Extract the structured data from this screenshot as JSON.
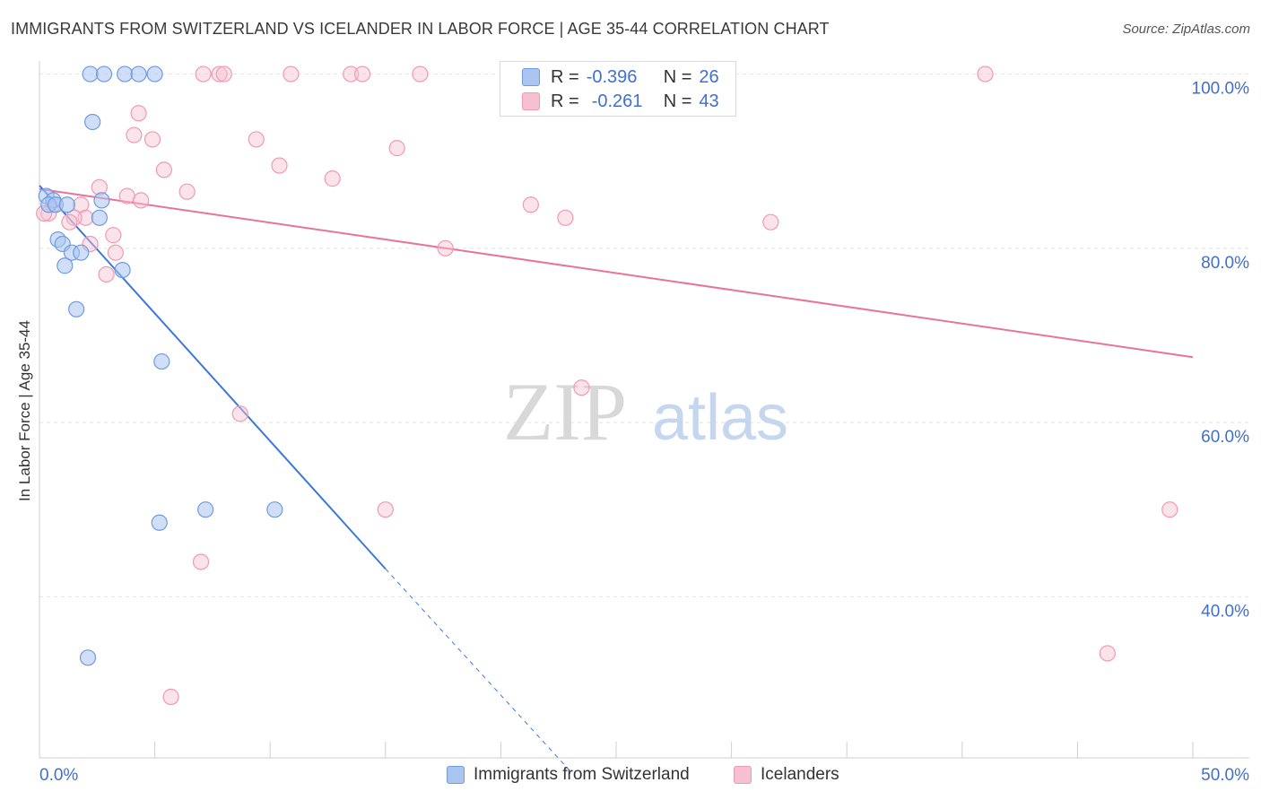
{
  "title": "IMMIGRANTS FROM SWITZERLAND VS ICELANDER IN LABOR FORCE | AGE 35-44 CORRELATION CHART",
  "source": "Source: ZipAtlas.com",
  "watermark": {
    "zip": "ZIP",
    "atlas": "atlas"
  },
  "legend": {
    "r_label": "R =",
    "n_label": "N =",
    "series1": {
      "r": "-0.396",
      "n": "26"
    },
    "series2": {
      "r": "-0.261",
      "n": "43"
    }
  },
  "bottom_legend": {
    "series1": "Immigrants from Switzerland",
    "series2": "Icelanders"
  },
  "colors": {
    "blue_fill": "#a9c5f0",
    "blue_stroke": "#6f9be0",
    "blue_line": "#3b78d8",
    "pink_fill": "#f7c0d0",
    "pink_stroke": "#ee9ab5",
    "pink_line": "#e8739b",
    "axis_text": "#3f6fd1"
  },
  "chart_data": {
    "type": "scatter",
    "title": "IMMIGRANTS FROM SWITZERLAND VS ICELANDER IN LABOR FORCE | AGE 35-44 CORRELATION CHART",
    "xlabel": "",
    "ylabel": "In Labor Force | Age 35-44",
    "xlim": [
      0,
      50
    ],
    "ylim": [
      21.5,
      101.5
    ],
    "x_tick_labels": [
      "0.0%",
      "50.0%"
    ],
    "y_ticks": [
      40,
      60,
      80,
      100
    ],
    "y_tick_labels": [
      "40.0%",
      "60.0%",
      "80.0%",
      "100.0%"
    ],
    "series": [
      {
        "name": "Immigrants from Switzerland",
        "r": -0.396,
        "n": 26,
        "points": [
          [
            2.2,
            100
          ],
          [
            2.8,
            100
          ],
          [
            3.7,
            100
          ],
          [
            4.3,
            100
          ],
          [
            5.0,
            100
          ],
          [
            2.3,
            94.5
          ],
          [
            0.3,
            86
          ],
          [
            0.6,
            85.5
          ],
          [
            0.4,
            85
          ],
          [
            0.7,
            85
          ],
          [
            1.2,
            85
          ],
          [
            2.7,
            85.5
          ],
          [
            2.6,
            83.5
          ],
          [
            0.8,
            81
          ],
          [
            1.0,
            80.5
          ],
          [
            1.4,
            79.5
          ],
          [
            1.8,
            79.5
          ],
          [
            1.1,
            78
          ],
          [
            3.6,
            77.5
          ],
          [
            1.6,
            73
          ],
          [
            5.3,
            67
          ],
          [
            5.2,
            48.5
          ],
          [
            7.2,
            50
          ],
          [
            10.2,
            50
          ],
          [
            2.1,
            33
          ]
        ],
        "trend": {
          "x": [
            0,
            15
          ],
          "y": [
            87.2,
            43.2
          ],
          "dashed_to": {
            "x": 23,
            "y": 20
          }
        }
      },
      {
        "name": "Icelanders",
        "r": -0.261,
        "n": 43,
        "points": [
          [
            7.1,
            100
          ],
          [
            7.8,
            100
          ],
          [
            8.0,
            100
          ],
          [
            10.9,
            100
          ],
          [
            13.5,
            100
          ],
          [
            14.0,
            100
          ],
          [
            16.5,
            100
          ],
          [
            41.0,
            100
          ],
          [
            4.3,
            95.5
          ],
          [
            4.1,
            93
          ],
          [
            4.9,
            92.5
          ],
          [
            9.4,
            92.5
          ],
          [
            15.5,
            91.5
          ],
          [
            10.4,
            89.5
          ],
          [
            5.4,
            89
          ],
          [
            12.7,
            88
          ],
          [
            2.6,
            87
          ],
          [
            6.4,
            86.5
          ],
          [
            3.8,
            86
          ],
          [
            4.4,
            85.5
          ],
          [
            0.6,
            85
          ],
          [
            1.8,
            85
          ],
          [
            0.4,
            84
          ],
          [
            0.2,
            84
          ],
          [
            2.0,
            83.5
          ],
          [
            1.5,
            83.5
          ],
          [
            1.3,
            83
          ],
          [
            21.3,
            85
          ],
          [
            22.8,
            83.5
          ],
          [
            31.7,
            83
          ],
          [
            3.2,
            81.5
          ],
          [
            2.2,
            80.5
          ],
          [
            3.3,
            79.5
          ],
          [
            17.6,
            80
          ],
          [
            2.9,
            77
          ],
          [
            23.5,
            64
          ],
          [
            8.7,
            61
          ],
          [
            15.0,
            50
          ],
          [
            49.0,
            50
          ],
          [
            7.0,
            44
          ],
          [
            46.3,
            33.5
          ],
          [
            5.7,
            28.5
          ]
        ],
        "trend": {
          "x": [
            0,
            50
          ],
          "y": [
            86.8,
            67.5
          ]
        }
      }
    ]
  }
}
